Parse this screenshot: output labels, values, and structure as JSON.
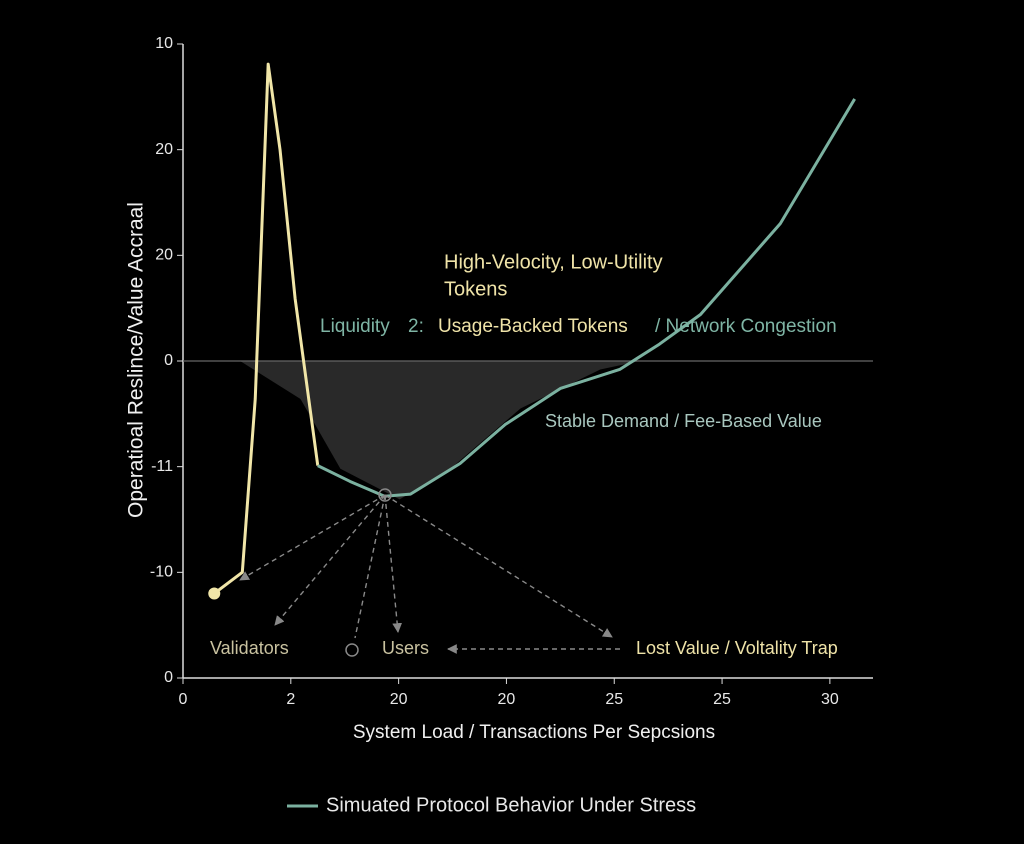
{
  "chart_data": {
    "type": "line",
    "y_label": "Operatioal Reslince/Value Accraal",
    "x_label": "System Load / Transactions Per Sepcsions",
    "xlim": [
      0,
      6.4
    ],
    "ylim": [
      -3,
      3
    ],
    "xticks": [
      0,
      {
        "value": 1,
        "label": "2"
      },
      {
        "value": 2,
        "label": "20"
      },
      {
        "value": 3,
        "label": "20"
      },
      {
        "value": 4,
        "label": "25"
      },
      {
        "value": 5,
        "label": "25"
      },
      {
        "value": 6,
        "label": "30"
      }
    ],
    "yticks": [
      {
        "value": -3,
        "label": "0"
      },
      {
        "value": -2,
        "label": "-10"
      },
      {
        "value": -1,
        "label": "-11"
      },
      0,
      {
        "value": 1,
        "label": "20"
      },
      {
        "value": 2,
        "label": "20"
      },
      {
        "value": 3,
        "label": "10"
      }
    ],
    "zero_line": true,
    "area": {
      "color": "#2e2e2e",
      "x": [
        0.53,
        1.09,
        1.46,
        2.01,
        2.48,
        3.13,
        3.87,
        4.24
      ],
      "values": [
        0,
        -0.36,
        -1.02,
        -1.31,
        -1.02,
        -0.45,
        -0.08,
        0
      ]
    },
    "series": [
      {
        "color": "#f1e6a8",
        "x": [
          0.29,
          0.55,
          0.67,
          0.79,
          0.9,
          1.04,
          1.25
        ],
        "values": [
          -2.2,
          -2.0,
          -0.36,
          2.81,
          2.0,
          0.59,
          -0.99
        ]
      },
      {
        "name": "Simuated Protocol Behavior Under Stress",
        "color": "#7bb1a0",
        "x": [
          1.25,
          1.55,
          1.87,
          2.11,
          2.57,
          2.99,
          3.5,
          4.05,
          4.42,
          4.8,
          5.54,
          6.23
        ],
        "values": [
          -0.99,
          -1.14,
          -1.28,
          -1.26,
          -0.97,
          -0.6,
          -0.26,
          -0.08,
          0.16,
          0.44,
          1.3,
          2.48
        ]
      }
    ],
    "annotations": [
      "High-Velocity, Low-Utility",
      "Tokens",
      "Liquidity",
      "2:",
      "Usage-Backed Tokens",
      "/ Network Congestion",
      "Stable Demand / Fee-Based Value",
      "Validators",
      "Users",
      "Lost Value / Voltality Trap"
    ]
  }
}
